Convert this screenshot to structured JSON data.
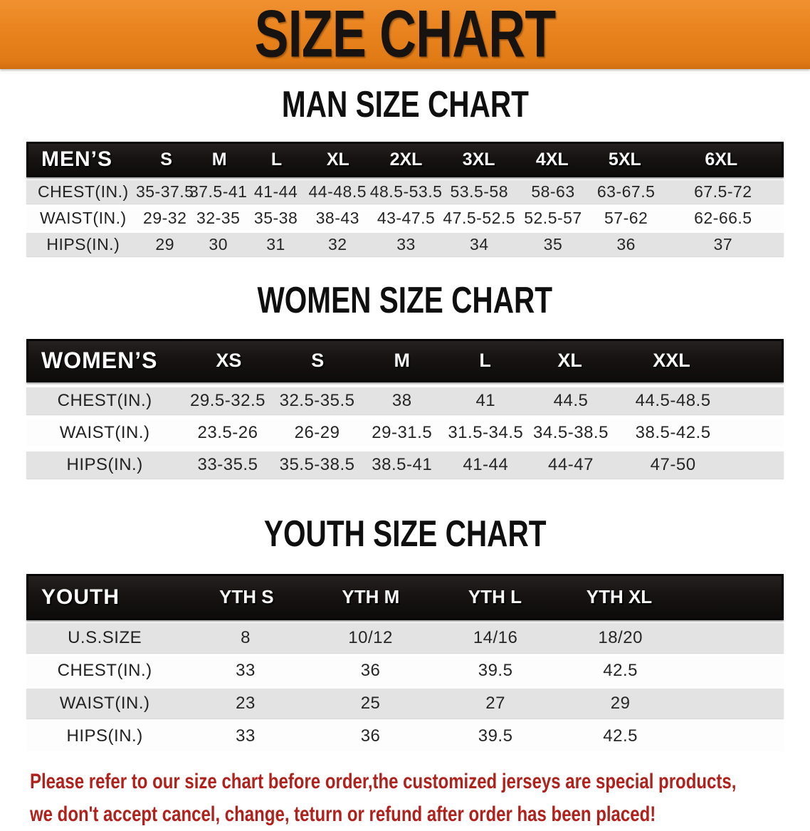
{
  "banner": {
    "title": "SIZE CHART",
    "bg_color": "#E9831E",
    "text_color": "#171310"
  },
  "colors": {
    "header_bar": "#141111",
    "row_shaded": "#E3E3E3",
    "row_plain": "#FDFDFD",
    "note_red": "#B0211C"
  },
  "sections": {
    "men": {
      "title": "MAN SIZE CHART",
      "header_label": "MEN’S",
      "columns": [
        "S",
        "M",
        "L",
        "XL",
        "2XL",
        "3XL",
        "4XL",
        "5XL",
        "6XL"
      ],
      "rows": [
        {
          "label": "CHEST(IN.)",
          "values": [
            "35-37.5",
            "37.5-41",
            "41-44",
            "44-48.5",
            "48.5-53.5",
            "53.5-58",
            "58-63",
            "63-67.5",
            "67.5-72"
          ]
        },
        {
          "label": "WAIST(IN.)",
          "values": [
            "29-32",
            "32-35",
            "35-38",
            "38-43",
            "43-47.5",
            "47.5-52.5",
            "52.5-57",
            "57-62",
            "62-66.5"
          ]
        },
        {
          "label": "HIPS(IN.)",
          "values": [
            "29",
            "30",
            "31",
            "32",
            "33",
            "34",
            "35",
            "36",
            "37"
          ]
        }
      ]
    },
    "women": {
      "title": "WOMEN SIZE CHART",
      "header_label": "WOMEN’S",
      "columns": [
        "XS",
        "S",
        "M",
        "L",
        "XL",
        "XXL"
      ],
      "rows": [
        {
          "label": "CHEST(IN.)",
          "values": [
            "29.5-32.5",
            "32.5-35.5",
            "38",
            "41",
            "44.5",
            "44.5-48.5"
          ]
        },
        {
          "label": "WAIST(IN.)",
          "values": [
            "23.5-26",
            "26-29",
            "29-31.5",
            "31.5-34.5",
            "34.5-38.5",
            "38.5-42.5"
          ]
        },
        {
          "label": "HIPS(IN.)",
          "values": [
            "33-35.5",
            "35.5-38.5",
            "38.5-41",
            "41-44",
            "44-47",
            "47-50"
          ]
        }
      ]
    },
    "youth": {
      "title": "YOUTH SIZE CHART",
      "header_label": "YOUTH",
      "columns": [
        "YTH S",
        "YTH M",
        "YTH L",
        "YTH XL"
      ],
      "rows": [
        {
          "label": "U.S.SIZE",
          "values": [
            "8",
            "10/12",
            "14/16",
            "18/20"
          ]
        },
        {
          "label": "CHEST(IN.)",
          "values": [
            "33",
            "36",
            "39.5",
            "42.5"
          ]
        },
        {
          "label": "WAIST(IN.)",
          "values": [
            "23",
            "25",
            "27",
            "29"
          ]
        },
        {
          "label": "HIPS(IN.)",
          "values": [
            "33",
            "36",
            "39.5",
            "42.5"
          ]
        }
      ]
    }
  },
  "footer_note": {
    "line1": "Please refer to our size chart before order,the customized jerseys are special products,",
    "line2": "we don't accept cancel, change, teturn or refund after order has been placed!"
  }
}
